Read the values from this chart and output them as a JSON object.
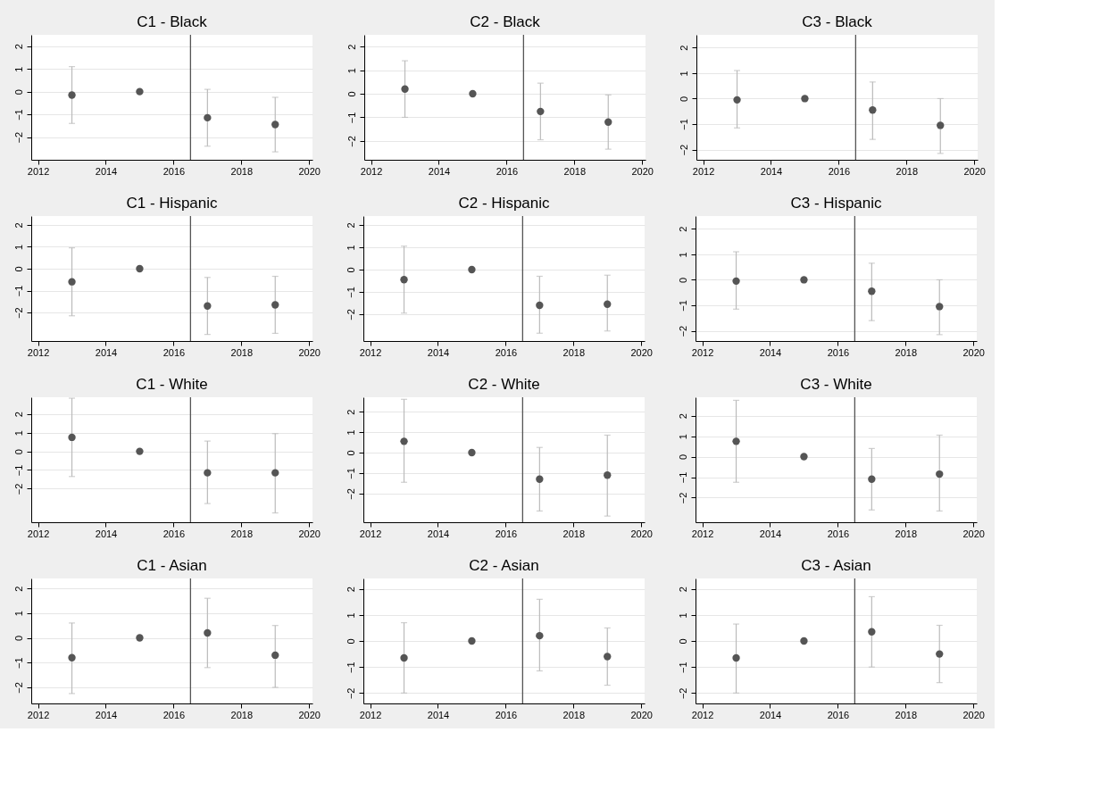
{
  "chart_data": [
    {
      "type": "scatter",
      "title": "C1 - Black",
      "x": [
        2013,
        2015,
        2017,
        2019
      ],
      "values": [
        -0.15,
        0,
        -1.15,
        -1.45
      ],
      "errors": [
        [
          -1.4,
          1.1
        ],
        null,
        [
          -2.4,
          0.1
        ],
        [
          -2.65,
          -0.25
        ]
      ],
      "color": "#555555",
      "marker": "circle",
      "xlim": [
        2011.8,
        2020.1
      ],
      "xticks": [
        2012,
        2014,
        2016,
        2018,
        2020
      ],
      "ylim": [
        -3.0,
        2.5
      ],
      "yticks": [
        -2,
        -1,
        0,
        1,
        2
      ],
      "grid": "y",
      "ref_lines": [
        {
          "axis": "x",
          "value": 2016.5,
          "color": "#555555"
        }
      ]
    },
    {
      "type": "scatter",
      "title": "C2 - Black",
      "x": [
        2013,
        2015,
        2017,
        2019
      ],
      "values": [
        0.2,
        0,
        -0.75,
        -1.2
      ],
      "errors": [
        [
          -1.0,
          1.4
        ],
        null,
        [
          -1.95,
          0.45
        ],
        [
          -2.35,
          -0.05
        ]
      ],
      "color": "#555555",
      "marker": "circle",
      "xlim": [
        2011.8,
        2020.1
      ],
      "xticks": [
        2012,
        2014,
        2016,
        2018,
        2020
      ],
      "ylim": [
        -2.8,
        2.5
      ],
      "yticks": [
        -2,
        -1,
        0,
        1,
        2
      ],
      "grid": "y",
      "ref_lines": [
        {
          "axis": "x",
          "value": 2016.5,
          "color": "#555555"
        }
      ]
    },
    {
      "type": "scatter",
      "title": "C3 - Black",
      "x": [
        2013,
        2015,
        2017,
        2019
      ],
      "values": [
        -0.05,
        0,
        -0.45,
        -1.05
      ],
      "errors": [
        [
          -1.15,
          1.1
        ],
        null,
        [
          -1.6,
          0.65
        ],
        [
          -2.15,
          0.0
        ]
      ],
      "color": "#555555",
      "marker": "circle",
      "xlim": [
        2011.8,
        2020.1
      ],
      "xticks": [
        2012,
        2014,
        2016,
        2018,
        2020
      ],
      "ylim": [
        -2.4,
        2.5
      ],
      "yticks": [
        -2,
        -1,
        0,
        1,
        2
      ],
      "grid": "y",
      "ref_lines": [
        {
          "axis": "x",
          "value": 2016.5,
          "color": "#555555"
        }
      ]
    },
    {
      "type": "scatter",
      "title": "C1 - Hispanic",
      "x": [
        2013,
        2015,
        2017,
        2019
      ],
      "values": [
        -0.6,
        0,
        -1.7,
        -1.65
      ],
      "errors": [
        [
          -2.15,
          0.95
        ],
        null,
        [
          -3.0,
          -0.4
        ],
        [
          -2.95,
          -0.35
        ]
      ],
      "color": "#555555",
      "marker": "circle",
      "xlim": [
        2011.8,
        2020.1
      ],
      "xticks": [
        2012,
        2014,
        2016,
        2018,
        2020
      ],
      "ylim": [
        -3.3,
        2.4
      ],
      "yticks": [
        -2,
        -1,
        0,
        1,
        2
      ],
      "grid": "y",
      "ref_lines": [
        {
          "axis": "x",
          "value": 2016.5,
          "color": "#555555"
        }
      ]
    },
    {
      "type": "scatter",
      "title": "C2 - Hispanic",
      "x": [
        2013,
        2015,
        2017,
        2019
      ],
      "values": [
        -0.45,
        0,
        -1.6,
        -1.55
      ],
      "errors": [
        [
          -1.95,
          1.05
        ],
        null,
        [
          -2.85,
          -0.3
        ],
        [
          -2.75,
          -0.25
        ]
      ],
      "color": "#555555",
      "marker": "circle",
      "xlim": [
        2011.8,
        2020.1
      ],
      "xticks": [
        2012,
        2014,
        2016,
        2018,
        2020
      ],
      "ylim": [
        -3.2,
        2.4
      ],
      "yticks": [
        -2,
        -1,
        0,
        1,
        2
      ],
      "grid": "y",
      "ref_lines": [
        {
          "axis": "x",
          "value": 2016.5,
          "color": "#555555"
        }
      ]
    },
    {
      "type": "scatter",
      "title": "C3 - Hispanic",
      "x": [
        2013,
        2015,
        2017,
        2019
      ],
      "values": [
        -0.05,
        0,
        -0.45,
        -1.05
      ],
      "errors": [
        [
          -1.15,
          1.1
        ],
        null,
        [
          -1.6,
          0.65
        ],
        [
          -2.15,
          0.0
        ]
      ],
      "color": "#555555",
      "marker": "circle",
      "xlim": [
        2011.8,
        2020.1
      ],
      "xticks": [
        2012,
        2014,
        2016,
        2018,
        2020
      ],
      "ylim": [
        -2.4,
        2.5
      ],
      "yticks": [
        -2,
        -1,
        0,
        1,
        2
      ],
      "grid": "y",
      "ref_lines": [
        {
          "axis": "x",
          "value": 2016.5,
          "color": "#555555"
        }
      ]
    },
    {
      "type": "scatter",
      "title": "C1 - White",
      "x": [
        2013,
        2015,
        2017,
        2019
      ],
      "values": [
        0.75,
        0,
        -1.15,
        -1.15
      ],
      "errors": [
        [
          -1.35,
          2.85
        ],
        null,
        [
          -2.8,
          0.55
        ],
        [
          -3.3,
          0.95
        ]
      ],
      "color": "#555555",
      "marker": "circle",
      "xlim": [
        2011.8,
        2020.1
      ],
      "xticks": [
        2012,
        2014,
        2016,
        2018,
        2020
      ],
      "ylim": [
        -3.8,
        2.9
      ],
      "yticks": [
        -2,
        -1,
        0,
        1,
        2
      ],
      "grid": "y",
      "ref_lines": [
        {
          "axis": "x",
          "value": 2016.5,
          "color": "#555555"
        }
      ]
    },
    {
      "type": "scatter",
      "title": "C2 - White",
      "x": [
        2013,
        2015,
        2017,
        2019
      ],
      "values": [
        0.55,
        0,
        -1.3,
        -1.1
      ],
      "errors": [
        [
          -1.45,
          2.6
        ],
        null,
        [
          -2.85,
          0.25
        ],
        [
          -3.1,
          0.85
        ]
      ],
      "color": "#555555",
      "marker": "circle",
      "xlim": [
        2011.8,
        2020.1
      ],
      "xticks": [
        2012,
        2014,
        2016,
        2018,
        2020
      ],
      "ylim": [
        -3.4,
        2.7
      ],
      "yticks": [
        -2,
        -1,
        0,
        1,
        2
      ],
      "grid": "y",
      "ref_lines": [
        {
          "axis": "x",
          "value": 2016.5,
          "color": "#555555"
        }
      ]
    },
    {
      "type": "scatter",
      "title": "C3 - White",
      "x": [
        2013,
        2015,
        2017,
        2019
      ],
      "values": [
        0.75,
        0,
        -1.1,
        -0.85
      ],
      "errors": [
        [
          -1.25,
          2.75
        ],
        null,
        [
          -2.6,
          0.4
        ],
        [
          -2.65,
          1.05
        ]
      ],
      "color": "#555555",
      "marker": "circle",
      "xlim": [
        2011.8,
        2020.1
      ],
      "xticks": [
        2012,
        2014,
        2016,
        2018,
        2020
      ],
      "ylim": [
        -3.2,
        2.9
      ],
      "yticks": [
        -2,
        -1,
        0,
        1,
        2
      ],
      "grid": "y",
      "ref_lines": [
        {
          "axis": "x",
          "value": 2016.5,
          "color": "#555555"
        }
      ]
    },
    {
      "type": "scatter",
      "title": "C1 - Asian",
      "x": [
        2013,
        2015,
        2017,
        2019
      ],
      "values": [
        -0.8,
        0,
        0.2,
        -0.7
      ],
      "errors": [
        [
          -2.25,
          0.6
        ],
        null,
        [
          -1.2,
          1.6
        ],
        [
          -2.0,
          0.5
        ]
      ],
      "color": "#555555",
      "marker": "circle",
      "xlim": [
        2011.8,
        2020.1
      ],
      "xticks": [
        2012,
        2014,
        2016,
        2018,
        2020
      ],
      "ylim": [
        -2.65,
        2.4
      ],
      "yticks": [
        -2,
        -1,
        0,
        1,
        2
      ],
      "grid": "y",
      "ref_lines": [
        {
          "axis": "x",
          "value": 2016.5,
          "color": "#555555"
        }
      ]
    },
    {
      "type": "scatter",
      "title": "C2 - Asian",
      "x": [
        2013,
        2015,
        2017,
        2019
      ],
      "values": [
        -0.65,
        0,
        0.2,
        -0.6
      ],
      "errors": [
        [
          -2.0,
          0.7
        ],
        null,
        [
          -1.15,
          1.6
        ],
        [
          -1.7,
          0.5
        ]
      ],
      "color": "#555555",
      "marker": "circle",
      "xlim": [
        2011.8,
        2020.1
      ],
      "xticks": [
        2012,
        2014,
        2016,
        2018,
        2020
      ],
      "ylim": [
        -2.4,
        2.4
      ],
      "yticks": [
        -2,
        -1,
        0,
        1,
        2
      ],
      "grid": "y",
      "ref_lines": [
        {
          "axis": "x",
          "value": 2016.5,
          "color": "#555555"
        }
      ]
    },
    {
      "type": "scatter",
      "title": "C3 - Asian",
      "x": [
        2013,
        2015,
        2017,
        2019
      ],
      "values": [
        -0.65,
        0,
        0.35,
        -0.5
      ],
      "errors": [
        [
          -2.0,
          0.65
        ],
        null,
        [
          -1.0,
          1.7
        ],
        [
          -1.6,
          0.6
        ]
      ],
      "color": "#555555",
      "marker": "circle",
      "xlim": [
        2011.8,
        2020.1
      ],
      "xticks": [
        2012,
        2014,
        2016,
        2018,
        2020
      ],
      "ylim": [
        -2.4,
        2.4
      ],
      "yticks": [
        -2,
        -1,
        0,
        1,
        2
      ],
      "grid": "y",
      "ref_lines": [
        {
          "axis": "x",
          "value": 2016.5,
          "color": "#555555"
        }
      ]
    }
  ]
}
